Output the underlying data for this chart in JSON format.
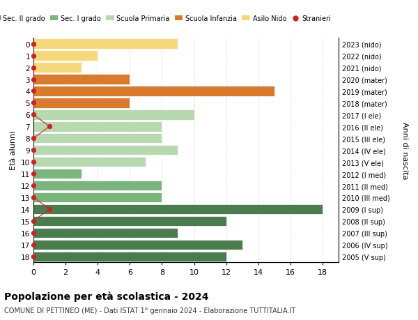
{
  "ages": [
    18,
    17,
    16,
    15,
    14,
    13,
    12,
    11,
    10,
    9,
    8,
    7,
    6,
    5,
    4,
    3,
    2,
    1,
    0
  ],
  "right_labels": [
    "2005 (V sup)",
    "2006 (IV sup)",
    "2007 (III sup)",
    "2008 (II sup)",
    "2009 (I sup)",
    "2010 (III med)",
    "2011 (II med)",
    "2012 (I med)",
    "2013 (V ele)",
    "2014 (IV ele)",
    "2015 (III ele)",
    "2016 (II ele)",
    "2017 (I ele)",
    "2018 (mater)",
    "2019 (mater)",
    "2020 (mater)",
    "2021 (nido)",
    "2022 (nido)",
    "2023 (nido)"
  ],
  "bar_values": [
    12,
    13,
    9,
    12,
    18,
    8,
    8,
    3,
    7,
    9,
    8,
    8,
    10,
    6,
    15,
    6,
    3,
    4,
    9
  ],
  "bar_colors": [
    "#4a7c4e",
    "#4a7c4e",
    "#4a7c4e",
    "#4a7c4e",
    "#4a7c4e",
    "#7ab57e",
    "#7ab57e",
    "#7ab57e",
    "#b8d9b0",
    "#b8d9b0",
    "#b8d9b0",
    "#b8d9b0",
    "#b8d9b0",
    "#d97b2e",
    "#d97b2e",
    "#d97b2e",
    "#f5d97a",
    "#f5d97a",
    "#f5d97a"
  ],
  "stranieri_values": [
    0,
    0,
    0,
    0,
    1,
    0,
    0,
    0,
    0,
    0,
    0,
    1,
    0,
    0,
    0,
    0,
    0,
    0,
    0
  ],
  "legend_labels": [
    "Sec. II grado",
    "Sec. I grado",
    "Scuola Primaria",
    "Scuola Infanzia",
    "Asilo Nido",
    "Stranieri"
  ],
  "legend_colors": [
    "#4a7c4e",
    "#7ab57e",
    "#b8d9b0",
    "#d97b2e",
    "#f5d97a",
    "#cc2222"
  ],
  "ylabel_left": "Età alunni",
  "ylabel_right": "Anni di nascita",
  "title": "Popolazione per età scolastica - 2024",
  "subtitle": "COMUNE DI PETTINEO (ME) - Dati ISTAT 1° gennaio 2024 - Elaborazione TUTTITALIA.IT",
  "xlim": [
    0,
    19
  ],
  "xticks": [
    0,
    2,
    4,
    6,
    8,
    10,
    12,
    14,
    16,
    18
  ],
  "bg_color": "#ffffff",
  "bar_edge_color": "#ffffff",
  "stranieri_line_color": "#cc2222",
  "stranieri_dot_color": "#cc2222"
}
